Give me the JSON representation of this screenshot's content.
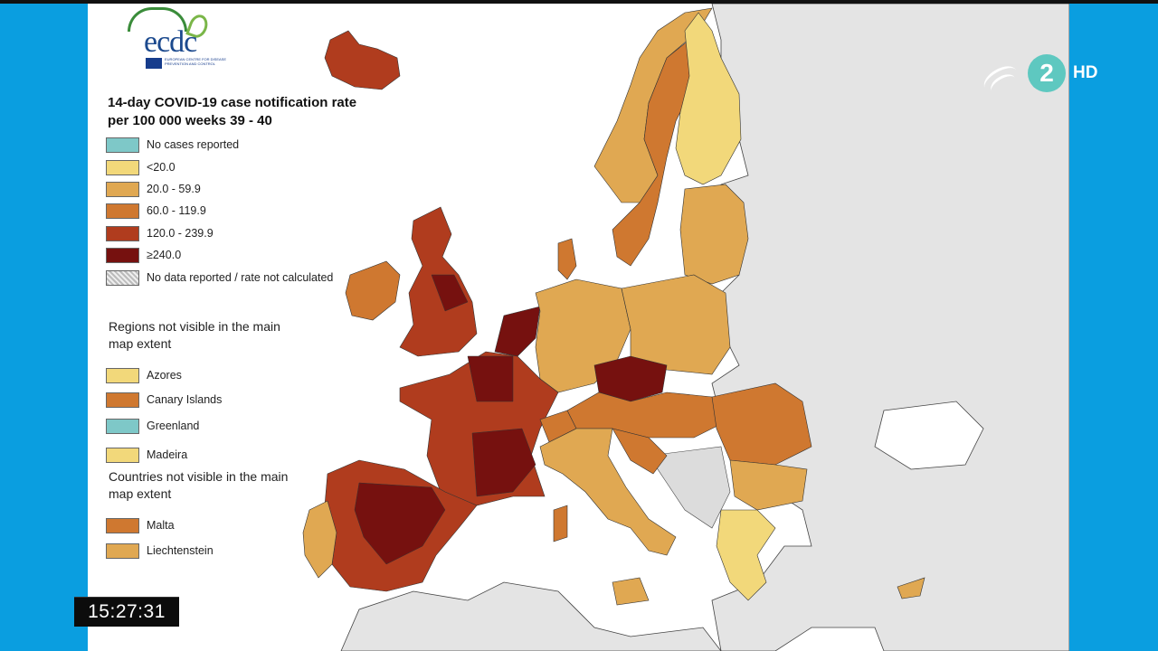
{
  "logo": {
    "name": "ecdc",
    "subtitle": "EUROPEAN CENTRE FOR DISEASE PREVENTION AND CONTROL"
  },
  "map": {
    "title": "14-day COVID-19 case notification rate per 100 000 weeks 39 - 40",
    "legend": [
      {
        "label": "No cases reported",
        "color": "#7ec8c8"
      },
      {
        "label": "<20.0",
        "color": "#f2d87a"
      },
      {
        "label": "20.0 - 59.9",
        "color": "#e0a852"
      },
      {
        "label": "60.0 - 119.9",
        "color": "#cf7830"
      },
      {
        "label": "120.0 - 239.9",
        "color": "#b03c1e"
      },
      {
        "label": "≥240.0",
        "color": "#76110f"
      },
      {
        "label": "No data reported / rate not calculated",
        "color": "hatched-grey"
      }
    ],
    "regions_title": "Regions not visible in the main map extent",
    "regions": [
      {
        "label": "Azores",
        "color": "#f2d87a"
      },
      {
        "label": "Canary Islands",
        "color": "#cf7830"
      },
      {
        "label": "Greenland",
        "color": "#7ec8c8"
      },
      {
        "label": "Madeira",
        "color": "#f2d87a"
      }
    ],
    "countries_title": "Countries not visible in the main map extent",
    "countries": [
      {
        "label": "Malta",
        "color": "#cf7830"
      },
      {
        "label": "Liechtenstein",
        "color": "#e0a852"
      }
    ]
  },
  "channel": {
    "number": "2",
    "hd": "HD"
  },
  "clock": "15:27:31"
}
